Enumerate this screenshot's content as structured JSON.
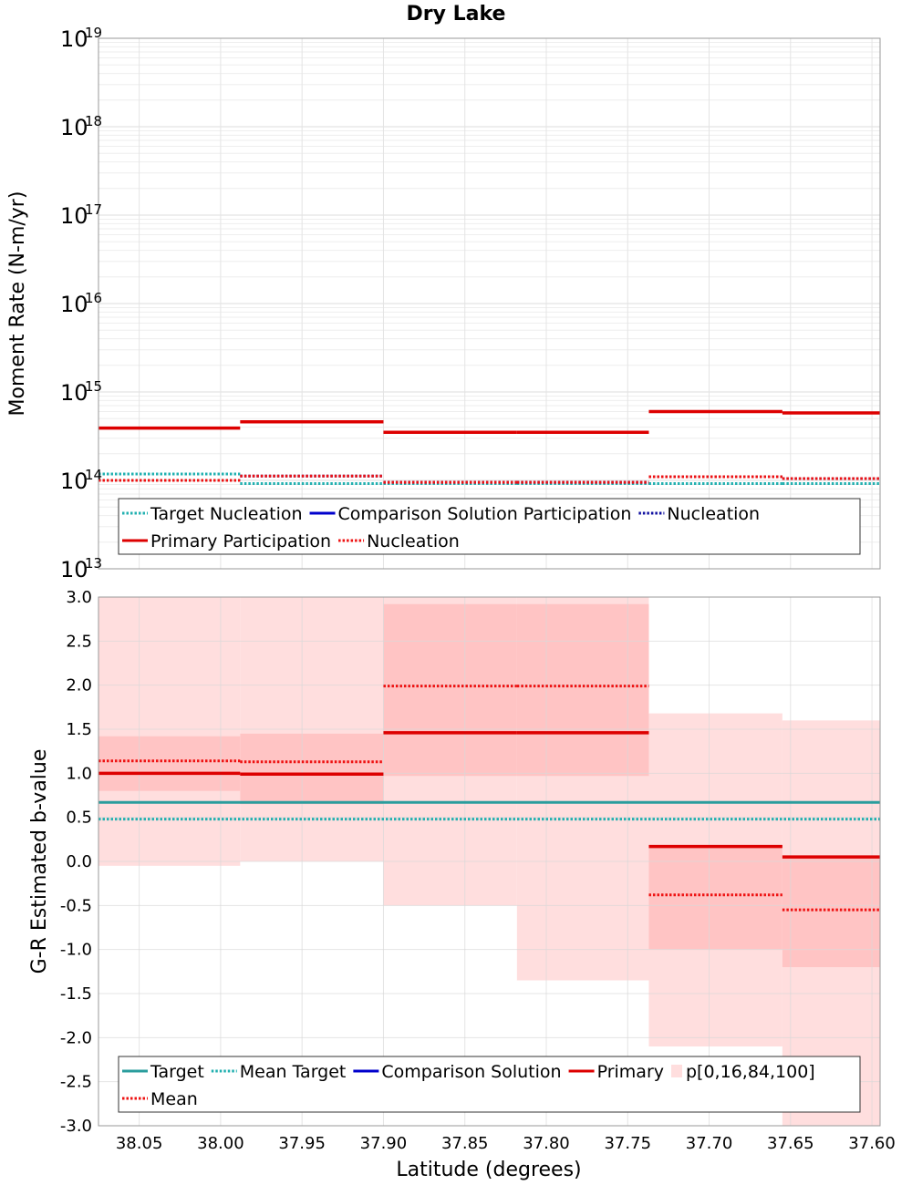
{
  "chart_data": [
    {
      "type": "line",
      "title": "Dry Lake",
      "ylabel": "Moment Rate (N-m/yr)",
      "yscale": "log",
      "ylim": [
        10000000000000.0,
        1e+19
      ],
      "xlim": [
        38.075,
        37.595
      ],
      "x_reversed": true,
      "grid": true,
      "x_ticks": [
        "38.05",
        "38.00",
        "37.95",
        "37.90",
        "37.85",
        "37.80",
        "37.75",
        "37.70",
        "37.65",
        "37.60"
      ],
      "y_ticks": [
        {
          "value": 10000000000000.0,
          "base": "10",
          "exp": "13"
        },
        {
          "value": 100000000000000.0,
          "base": "10",
          "exp": "14"
        },
        {
          "value": 1000000000000000.0,
          "base": "10",
          "exp": "15"
        },
        {
          "value": 1e+16,
          "base": "10",
          "exp": "16"
        },
        {
          "value": 1e+17,
          "base": "10",
          "exp": "17"
        },
        {
          "value": 1e+18,
          "base": "10",
          "exp": "18"
        },
        {
          "value": 1e+19,
          "base": "10",
          "exp": "19"
        }
      ],
      "segments": [
        [
          38.075,
          37.988
        ],
        [
          37.988,
          37.9
        ],
        [
          37.9,
          37.818
        ],
        [
          37.818,
          37.737
        ],
        [
          37.737,
          37.655
        ],
        [
          37.655,
          37.595
        ]
      ],
      "series": [
        {
          "name": "Target Nucleation",
          "color": "#22b0b0",
          "dash": true,
          "width": 3,
          "values": [
            118000000000000.0,
            92000000000000.0,
            92000000000000.0,
            92000000000000.0,
            92000000000000.0,
            92000000000000.0
          ]
        },
        {
          "name": "Comparison Solution Participation",
          "color": "#0000cc",
          "dash": false,
          "width": 3,
          "values": []
        },
        {
          "name": "Nucleation",
          "color": "#1010a0",
          "dash": true,
          "width": 3,
          "values": [
            100000000000000.0,
            112000000000000.0,
            95000000000000.0,
            95000000000000.0,
            110000000000000.0,
            105000000000000.0
          ]
        },
        {
          "name": "Primary Participation",
          "color": "#dd0000",
          "dash": false,
          "width": 3.5,
          "values": [
            390000000000000.0,
            460000000000000.0,
            350000000000000.0,
            350000000000000.0,
            600000000000000.0,
            580000000000000.0
          ]
        },
        {
          "name": "Nucleation",
          "color": "#ee1111",
          "dash": true,
          "width": 3,
          "values": [
            100000000000000.0,
            112000000000000.0,
            95000000000000.0,
            95000000000000.0,
            110000000000000.0,
            105000000000000.0
          ]
        }
      ],
      "legend": {
        "position": "bottom",
        "rows": [
          [
            0,
            1,
            2
          ],
          [
            3,
            4
          ]
        ]
      }
    },
    {
      "type": "line",
      "xlabel": "Latitude (degrees)",
      "ylabel": "G-R Estimated b-value",
      "ylim": [
        -3.0,
        3.0
      ],
      "xlim": [
        38.075,
        37.595
      ],
      "x_reversed": true,
      "grid": true,
      "x_ticks": [
        "38.05",
        "38.00",
        "37.95",
        "37.90",
        "37.85",
        "37.80",
        "37.75",
        "37.70",
        "37.65",
        "37.60"
      ],
      "y_ticks": [
        "3.0",
        "2.5",
        "2.0",
        "1.5",
        "1.0",
        "0.5",
        "0.0",
        "-0.5",
        "-1.0",
        "-1.5",
        "-2.0",
        "-2.5",
        "-3.0"
      ],
      "segments": [
        [
          38.075,
          37.988
        ],
        [
          37.988,
          37.9
        ],
        [
          37.9,
          37.818
        ],
        [
          37.818,
          37.737
        ],
        [
          37.737,
          37.655
        ],
        [
          37.655,
          37.595
        ]
      ],
      "percentile_bands": {
        "name": "p[0,16,84,100]",
        "p0": [
          -0.05,
          0.0,
          -0.5,
          -1.35,
          -2.1,
          -3.0
        ],
        "p16": [
          0.8,
          0.65,
          0.97,
          0.97,
          -1.0,
          -1.2
        ],
        "p84": [
          1.42,
          1.45,
          2.92,
          2.92,
          0.18,
          0.05
        ],
        "p100": [
          3.0,
          3.0,
          3.0,
          3.0,
          1.68,
          1.6
        ],
        "outer_color": "#ffdede",
        "inner_color": "#ffc4c4"
      },
      "series": [
        {
          "name": "Target",
          "color": "#2a9d9d",
          "dash": false,
          "width": 3,
          "values": [
            0.67,
            0.67,
            0.67,
            0.67,
            0.67,
            0.67
          ]
        },
        {
          "name": "Mean Target",
          "color": "#22b0b0",
          "dash": true,
          "width": 3,
          "values": [
            0.48,
            0.48,
            0.48,
            0.48,
            0.48,
            0.48
          ]
        },
        {
          "name": "Comparison Solution",
          "color": "#0000cc",
          "dash": false,
          "width": 3,
          "values": []
        },
        {
          "name": "Primary",
          "color": "#dd0000",
          "dash": false,
          "width": 3.5,
          "values": [
            1.0,
            0.99,
            1.46,
            1.46,
            0.17,
            0.05
          ]
        },
        {
          "name": "Mean",
          "color": "#ee1111",
          "dash": true,
          "width": 3,
          "values": [
            1.14,
            1.13,
            1.99,
            1.99,
            -0.38,
            -0.55
          ]
        }
      ],
      "legend": {
        "position": "bottom",
        "rows": [
          [
            0,
            1,
            2,
            3,
            "band"
          ],
          [
            4
          ]
        ]
      }
    }
  ]
}
